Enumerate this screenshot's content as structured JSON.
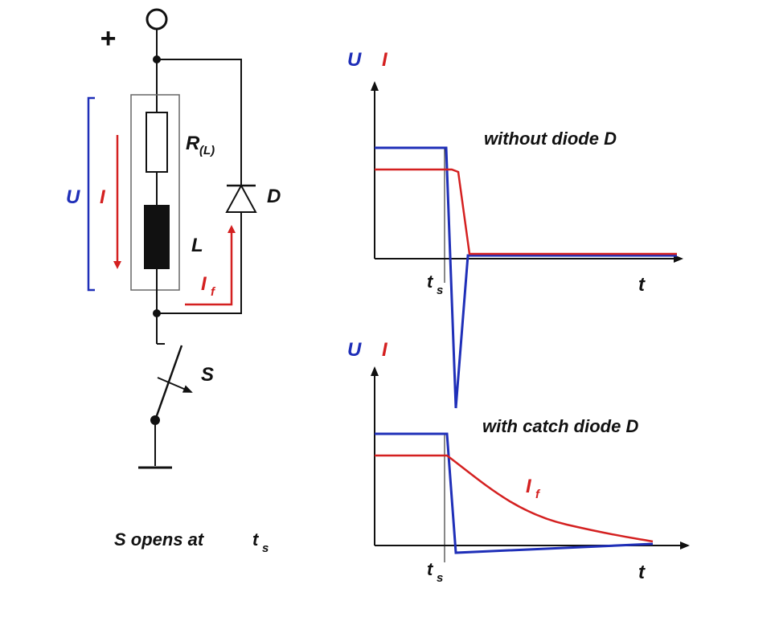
{
  "circuit": {
    "plus": "+",
    "resistor_label": "R",
    "resistor_sub": "(L)",
    "inductor_label": "L",
    "diode_label": "D",
    "switch_label": "S",
    "voltage_label": "U",
    "current_label": "I",
    "freewheel_current_label": "I",
    "freewheel_current_sub": "f",
    "caption_main": "S opens at",
    "caption_t": "t",
    "caption_sub": "s"
  },
  "plots": [
    {
      "y_label_u": "U",
      "y_label_i": "I",
      "title": "without diode D",
      "tick_label": "t",
      "tick_sub": "s",
      "x_label": "t"
    },
    {
      "y_label_u": "U",
      "y_label_i": "I",
      "title": "with catch diode D",
      "tick_label": "t",
      "tick_sub": "s",
      "x_label": "t",
      "curve_label": "I",
      "curve_sub": "f"
    }
  ],
  "colors": {
    "voltage": "#1f2fb8",
    "current": "#d42020",
    "wire": "#111111"
  }
}
